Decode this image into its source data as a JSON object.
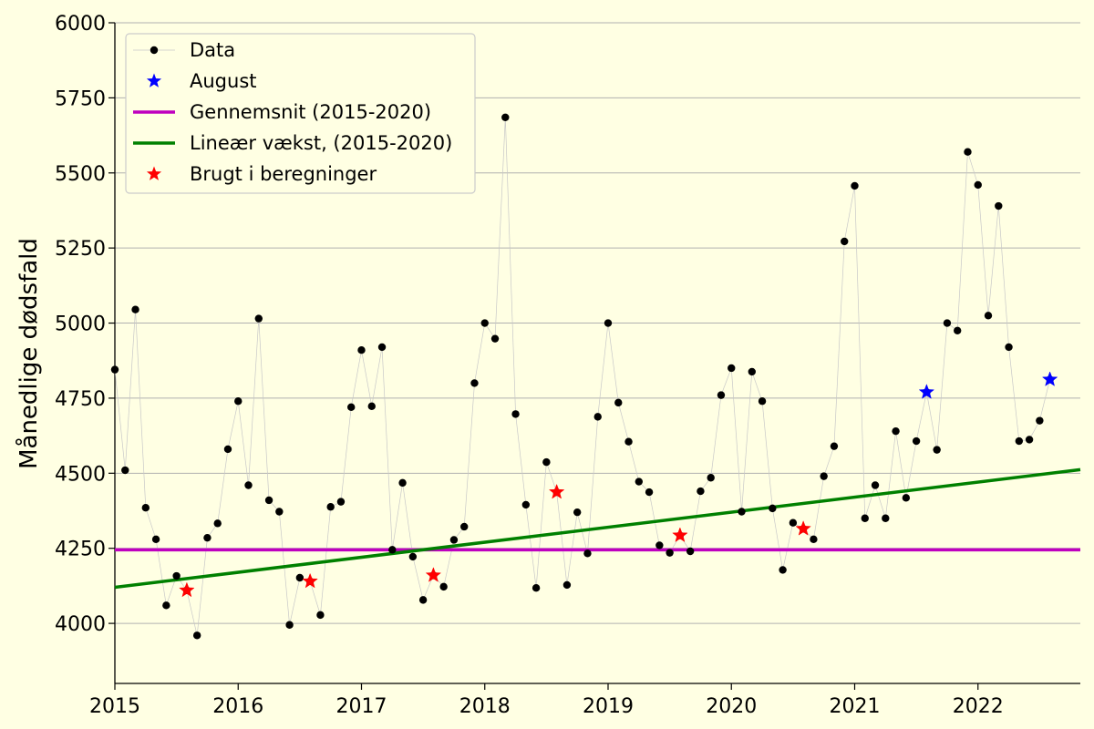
{
  "chart_data": {
    "type": "line",
    "title": "",
    "xlabel": "",
    "ylabel": "Månedlige dødsfald",
    "xlim": [
      2015.0,
      2022.83
    ],
    "ylim": [
      3800,
      6000
    ],
    "xticks": [
      "2015",
      "2016",
      "2017",
      "2018",
      "2019",
      "2020",
      "2021",
      "2022"
    ],
    "yticks": [
      "4000",
      "4250",
      "4500",
      "4750",
      "5000",
      "5250",
      "5500",
      "5750",
      "6000"
    ],
    "grid": "horizontal",
    "legend_placement": "top-left",
    "legend": [
      {
        "label": "Data",
        "style": "line-dot",
        "color": "#000000"
      },
      {
        "label": "August",
        "style": "star",
        "color": "#0000ff"
      },
      {
        "label": "Gennemsnit (2015-2020)",
        "style": "line",
        "color": "#bf00bf"
      },
      {
        "label": "Lineær vækst, (2015-2020)",
        "style": "line",
        "color": "#008000"
      },
      {
        "label": "Brugt i beregninger",
        "style": "star",
        "color": "#ff0000"
      }
    ],
    "series": [
      {
        "name": "Data",
        "color": "#000000",
        "start_year": 2015,
        "start_month": 1,
        "values": [
          4845,
          4510,
          5045,
          4385,
          4280,
          4060,
          4158,
          4110,
          3960,
          4285,
          4333,
          4580,
          4740,
          4460,
          5015,
          4410,
          4372,
          3995,
          4152,
          4140,
          4028,
          4388,
          4405,
          4720,
          4910,
          4723,
          4920,
          4245,
          4468,
          4222,
          4078,
          4160,
          4122,
          4278,
          4322,
          4800,
          5000,
          4948,
          5685,
          4697,
          4395,
          4118,
          4537,
          4437,
          4128,
          4370,
          4233,
          4688,
          5000,
          4735,
          4605,
          4472,
          4437,
          4260,
          4235,
          4293,
          4240,
          4440,
          4485,
          4760,
          4850,
          4372,
          4838,
          4740,
          4383,
          4178,
          4335,
          4315,
          4280,
          4490,
          4590,
          5272,
          5457,
          4350,
          4460,
          4350,
          4640,
          4418,
          4607,
          4770,
          4578,
          5000,
          4975,
          5570,
          5460,
          5025,
          5390,
          4920,
          4607,
          4612,
          4675,
          4812
        ]
      },
      {
        "name": "August",
        "color": "#0000ff",
        "points": [
          {
            "x": "2021-08",
            "y": 4770
          },
          {
            "x": "2022-08",
            "y": 4812
          }
        ]
      },
      {
        "name": "Gennemsnit (2015-2020)",
        "color": "#bf00bf",
        "type": "hline",
        "y": 4245
      },
      {
        "name": "Lineær vækst, (2015-2020)",
        "color": "#008000",
        "type": "trend",
        "x": [
          2015.0,
          2022.83
        ],
        "y": [
          4120,
          4512
        ]
      },
      {
        "name": "Brugt i beregninger",
        "color": "#ff0000",
        "points": [
          {
            "x": "2015-08",
            "y": 4110
          },
          {
            "x": "2016-08",
            "y": 4140
          },
          {
            "x": "2017-08",
            "y": 4160
          },
          {
            "x": "2018-08",
            "y": 4437
          },
          {
            "x": "2019-08",
            "y": 4293
          },
          {
            "x": "2020-08",
            "y": 4315
          }
        ]
      }
    ]
  }
}
